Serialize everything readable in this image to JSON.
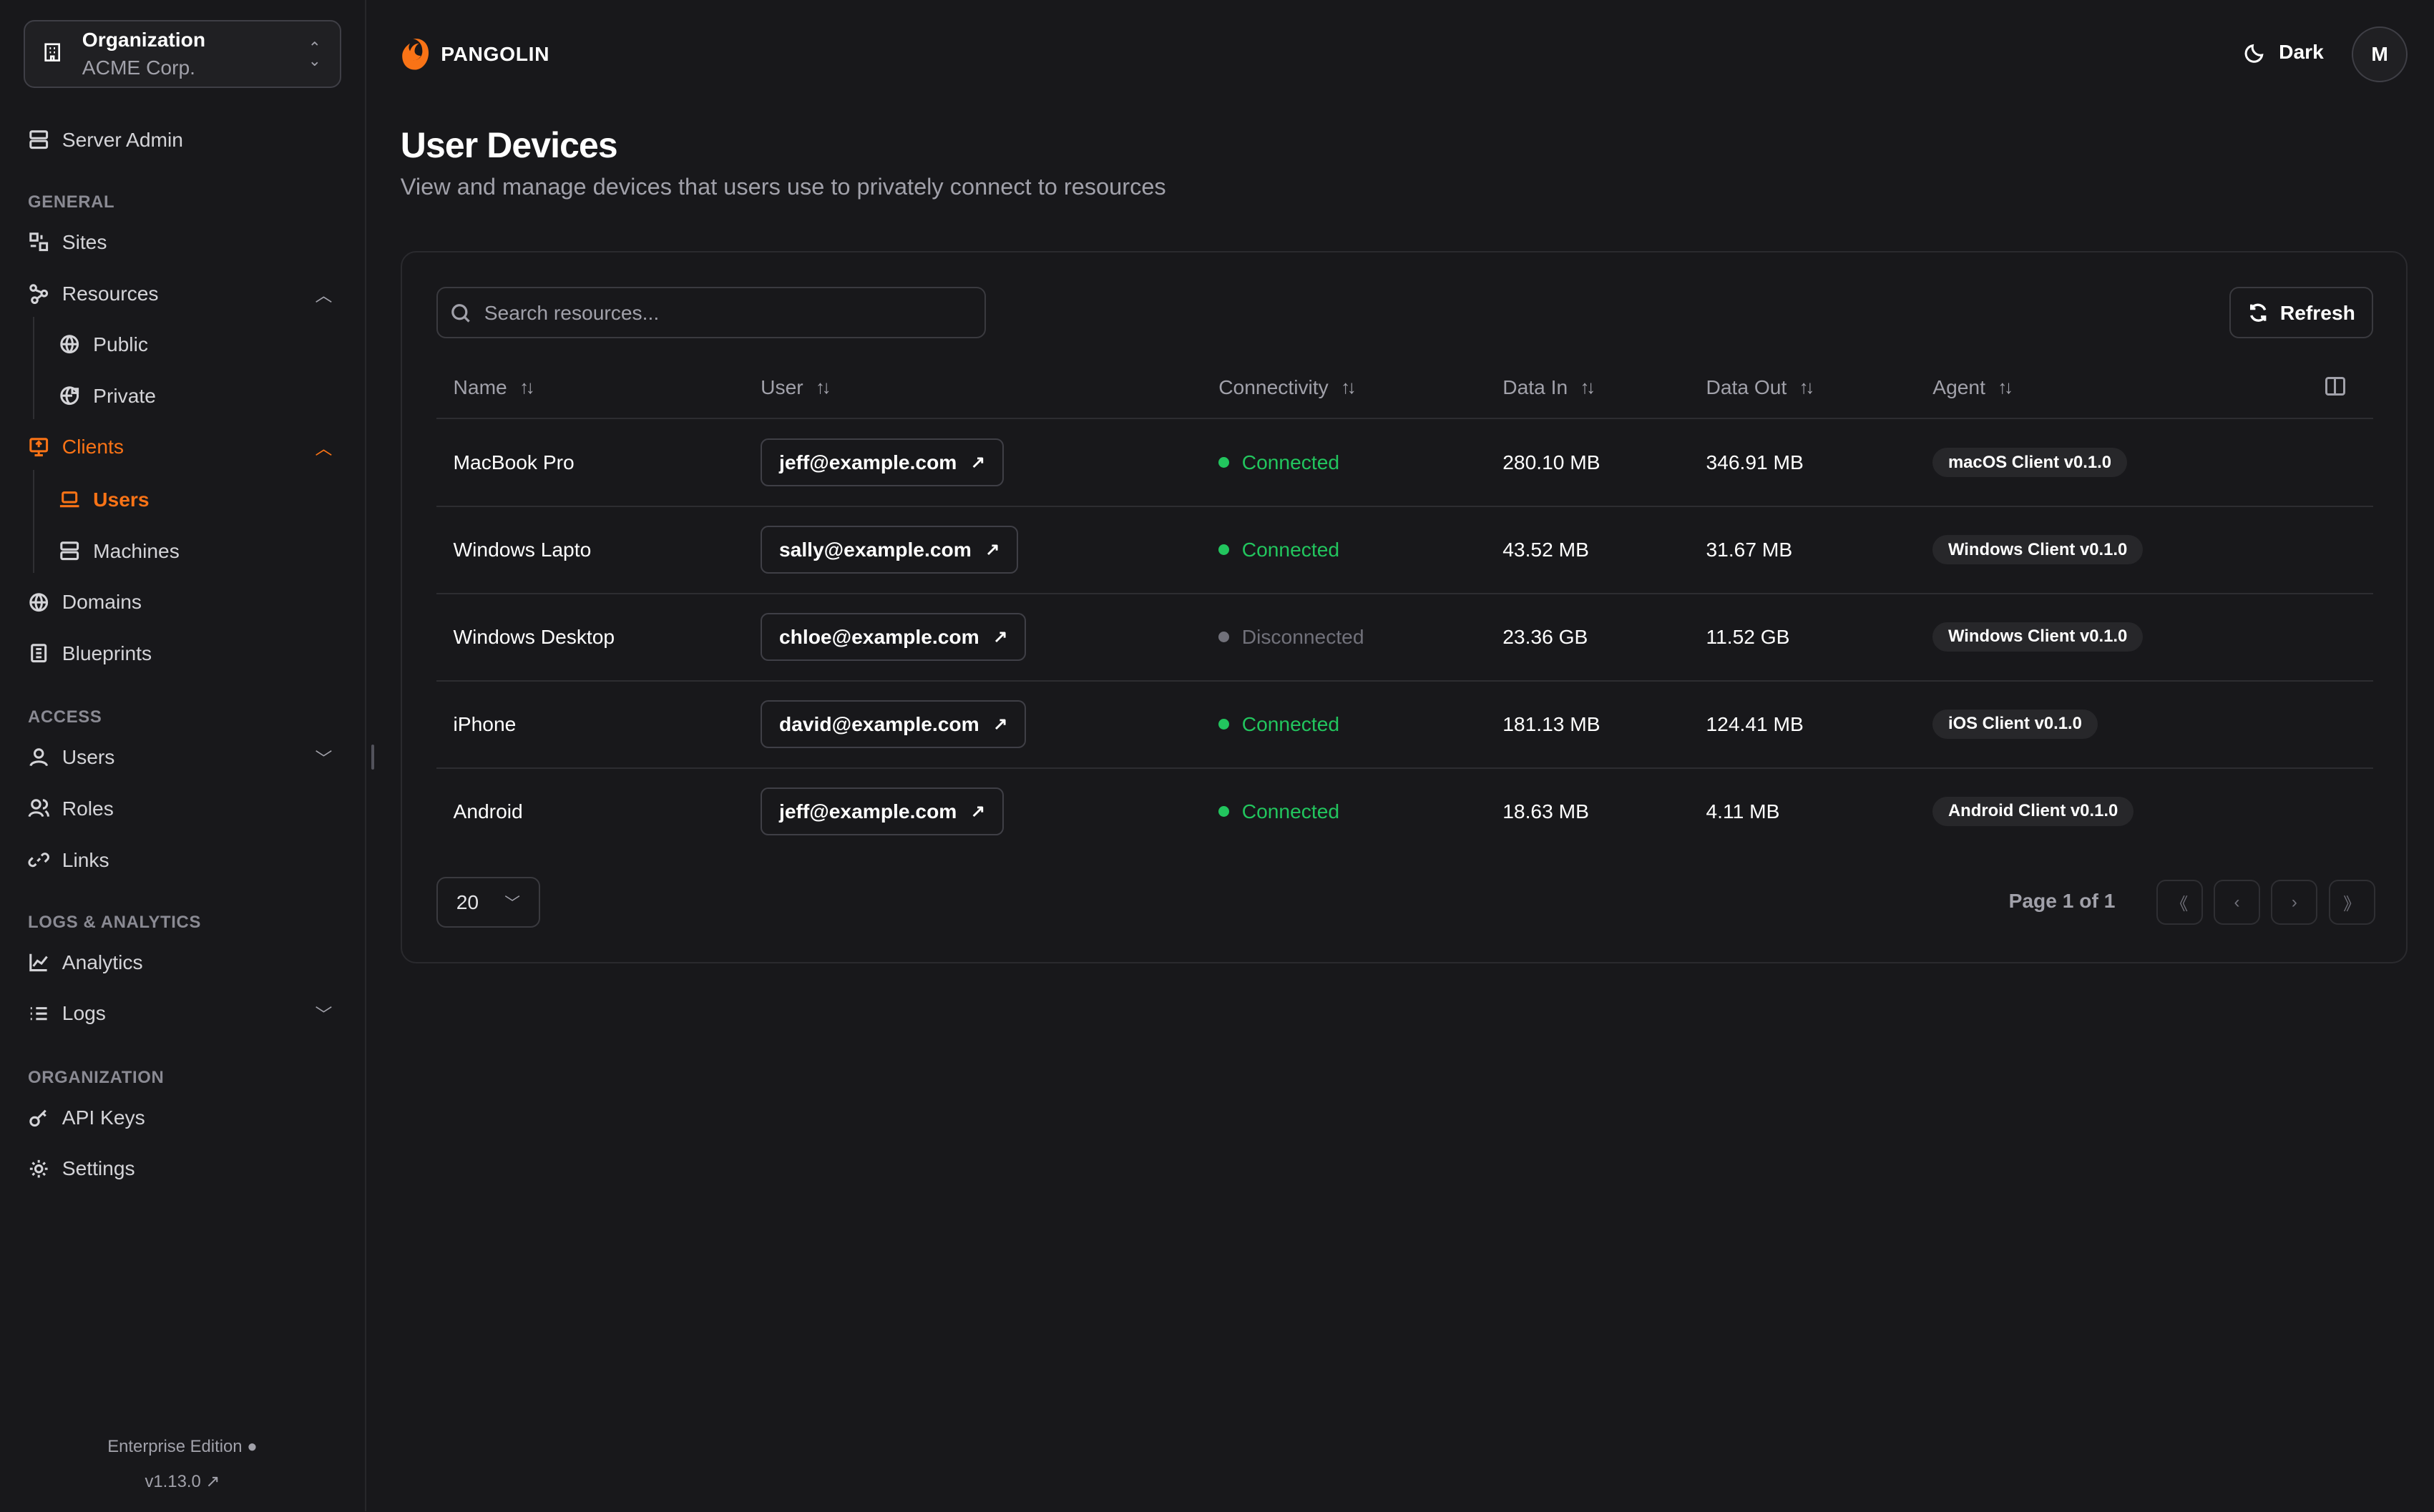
{
  "org": {
    "label": "Organization",
    "name": "ACME Corp."
  },
  "sidebar": {
    "server_admin": "Server Admin",
    "sections": {
      "general": "GENERAL",
      "access": "ACCESS",
      "logs": "LOGS & ANALYTICS",
      "organization": "ORGANIZATION"
    },
    "items": {
      "sites": "Sites",
      "resources": "Resources",
      "public": "Public",
      "private": "Private",
      "clients": "Clients",
      "users": "Users",
      "machines": "Machines",
      "domains": "Domains",
      "blueprints": "Blueprints",
      "access_users": "Users",
      "roles": "Roles",
      "links": "Links",
      "analytics": "Analytics",
      "logs": "Logs",
      "api_keys": "API Keys",
      "settings": "Settings"
    },
    "edition": "Enterprise Edition",
    "version": "v1.13.0"
  },
  "header": {
    "brand": "PANGOLIN",
    "theme": "Dark",
    "avatar": "M"
  },
  "page": {
    "title": "User Devices",
    "subtitle": "View and manage devices that users use to privately connect to resources"
  },
  "search": {
    "placeholder": "Search resources..."
  },
  "toolbar": {
    "refresh": "Refresh"
  },
  "table": {
    "columns": [
      "Name",
      "User",
      "Connectivity",
      "Data In",
      "Data Out",
      "Agent"
    ],
    "rows": [
      {
        "name": "MacBook Pro",
        "user": "jeff@example.com",
        "status": "Connected",
        "data_in": "280.10 MB",
        "data_out": "346.91 MB",
        "agent": "macOS Client v0.1.0"
      },
      {
        "name": "Windows Lapto",
        "user": "sally@example.com",
        "status": "Connected",
        "data_in": "43.52 MB",
        "data_out": "31.67 MB",
        "agent": "Windows Client v0.1.0"
      },
      {
        "name": "Windows Desktop",
        "user": "chloe@example.com",
        "status": "Disconnected",
        "data_in": "23.36 GB",
        "data_out": "11.52 GB",
        "agent": "Windows Client v0.1.0"
      },
      {
        "name": "iPhone",
        "user": "david@example.com",
        "status": "Connected",
        "data_in": "181.13 MB",
        "data_out": "124.41 MB",
        "agent": "iOS Client v0.1.0"
      },
      {
        "name": "Android",
        "user": "jeff@example.com",
        "status": "Connected",
        "data_in": "18.63 MB",
        "data_out": "4.11 MB",
        "agent": "Android Client v0.1.0"
      }
    ]
  },
  "pagination": {
    "page_size": "20",
    "page_info": "Page 1 of 1"
  },
  "colors": {
    "accent": "#f97316",
    "connected": "#22c55e",
    "disconnected": "#71717a"
  }
}
